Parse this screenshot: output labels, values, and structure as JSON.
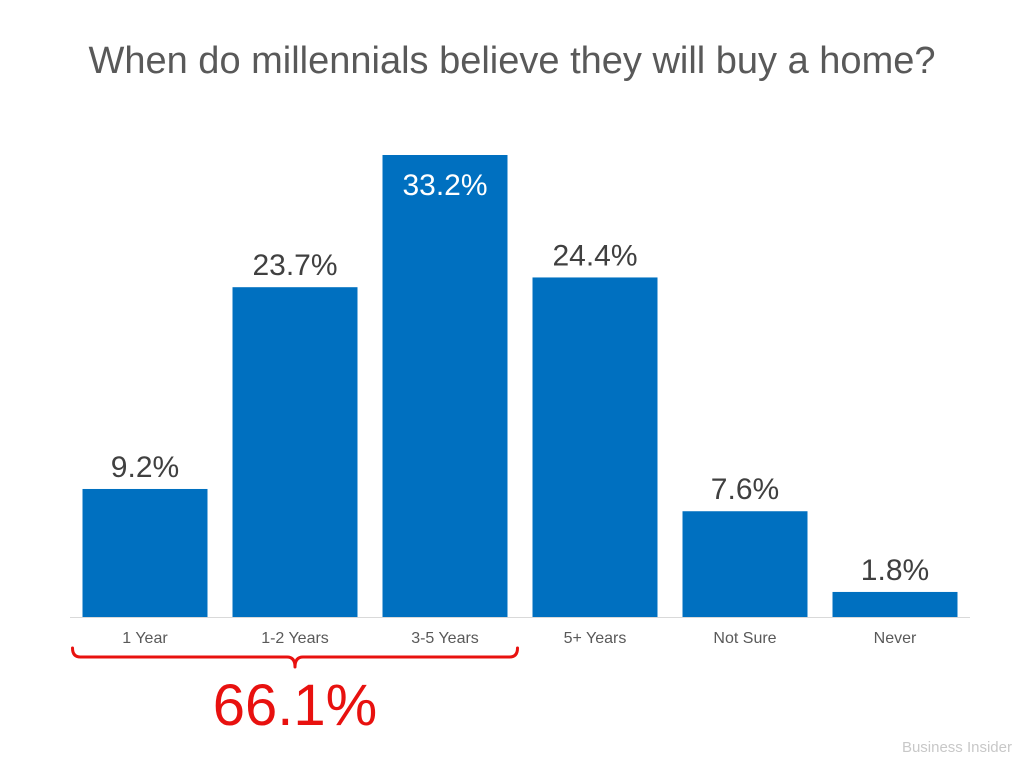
{
  "chart_data": {
    "type": "bar",
    "title": "When do millennials believe they will buy a home?",
    "categories": [
      "1 Year",
      "1-2 Years",
      "3-5 Years",
      "5+ Years",
      "Not Sure",
      "Never"
    ],
    "values": [
      9.2,
      23.7,
      33.2,
      24.4,
      7.6,
      1.8
    ],
    "value_labels": [
      "9.2%",
      "23.7%",
      "33.2%",
      "24.4%",
      "7.6%",
      "1.8%"
    ],
    "xlabel": "",
    "ylabel": "",
    "ylim": [
      0,
      33.2
    ],
    "grid": false,
    "legend": "none",
    "bar_color": "#0070C0",
    "annotation": {
      "text": "66.1%",
      "spans_categories": [
        "1 Year",
        "1-2 Years",
        "3-5 Years"
      ],
      "color": "#E8110F"
    }
  },
  "source": "Business Insider"
}
